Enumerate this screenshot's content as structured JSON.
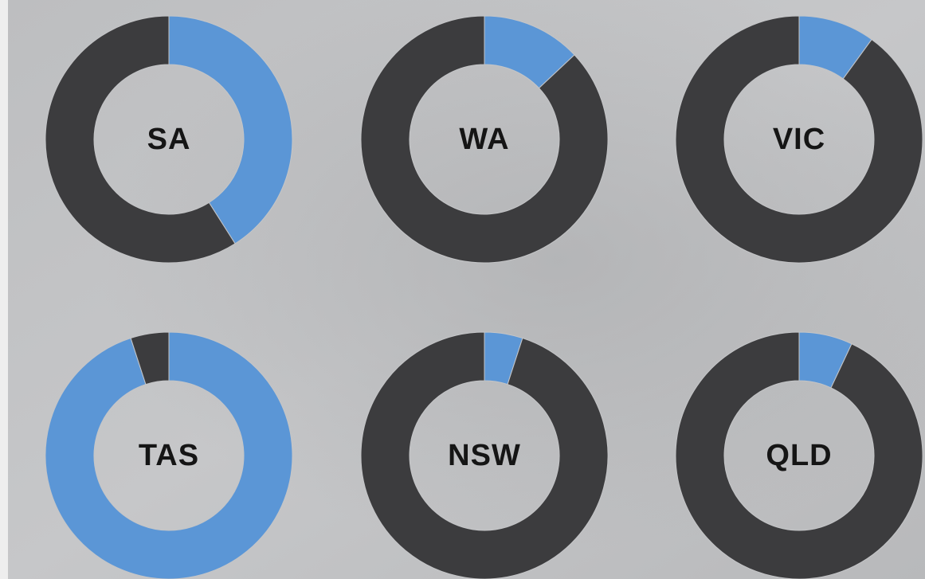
{
  "chart_data": [
    {
      "type": "pie",
      "title": "SA",
      "values": [
        41,
        59
      ],
      "colors": [
        "#5b96d6",
        "#3c3c3e"
      ]
    },
    {
      "type": "pie",
      "title": "WA",
      "values": [
        13,
        87
      ],
      "colors": [
        "#5b96d6",
        "#3c3c3e"
      ]
    },
    {
      "type": "pie",
      "title": "VIC",
      "values": [
        10,
        90
      ],
      "colors": [
        "#5b96d6",
        "#3c3c3e"
      ]
    },
    {
      "type": "pie",
      "title": "TAS",
      "values": [
        95,
        5
      ],
      "colors": [
        "#5b96d6",
        "#3c3c3e"
      ]
    },
    {
      "type": "pie",
      "title": "NSW",
      "values": [
        5,
        95
      ],
      "colors": [
        "#5b96d6",
        "#3c3c3e"
      ]
    },
    {
      "type": "pie",
      "title": "QLD",
      "values": [
        7,
        93
      ],
      "colors": [
        "#5b96d6",
        "#3c3c3e"
      ]
    }
  ]
}
